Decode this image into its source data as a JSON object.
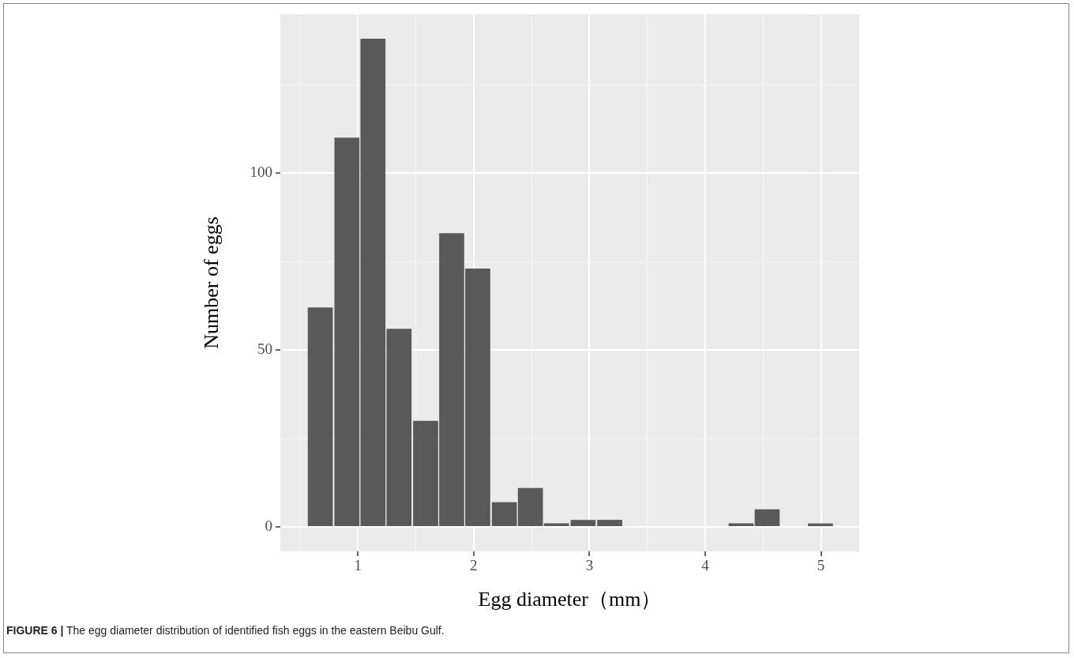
{
  "chart_data": {
    "type": "histogram",
    "xlabel": "Egg diameter（mm）",
    "ylabel": "Number of eggs",
    "annotations": [
      "FIGURE 6 | The egg diameter distribution of identified fish eggs in the eastern Beibu Gulf."
    ],
    "bins": [
      0.56,
      0.79,
      1.02,
      1.24,
      1.47,
      1.7,
      1.92,
      2.15,
      2.38,
      2.6,
      2.83,
      3.06,
      3.29,
      4.2,
      4.42,
      4.65,
      4.88,
      5.11
    ],
    "values": [
      62,
      110,
      138,
      56,
      30,
      83,
      73,
      7,
      11,
      1,
      2,
      2,
      0,
      1,
      5,
      0,
      1
    ],
    "color": "#595959",
    "xlim": [
      0.33,
      5.33
    ],
    "xticks": [
      {
        "value": 0.5,
        "label": null
      },
      1,
      {
        "value": 1.5,
        "label": null
      },
      2,
      {
        "value": 2.5,
        "label": null
      },
      3,
      {
        "value": 3.5,
        "label": null
      },
      4,
      {
        "value": 4.5,
        "label": null
      },
      5
    ],
    "ylim": [
      -6.9,
      144.9
    ],
    "yticks": [
      0,
      {
        "value": 25,
        "label": null
      },
      50,
      {
        "value": 75,
        "label": null
      },
      100,
      {
        "value": 125,
        "label": null
      }
    ],
    "grid": true
  }
}
